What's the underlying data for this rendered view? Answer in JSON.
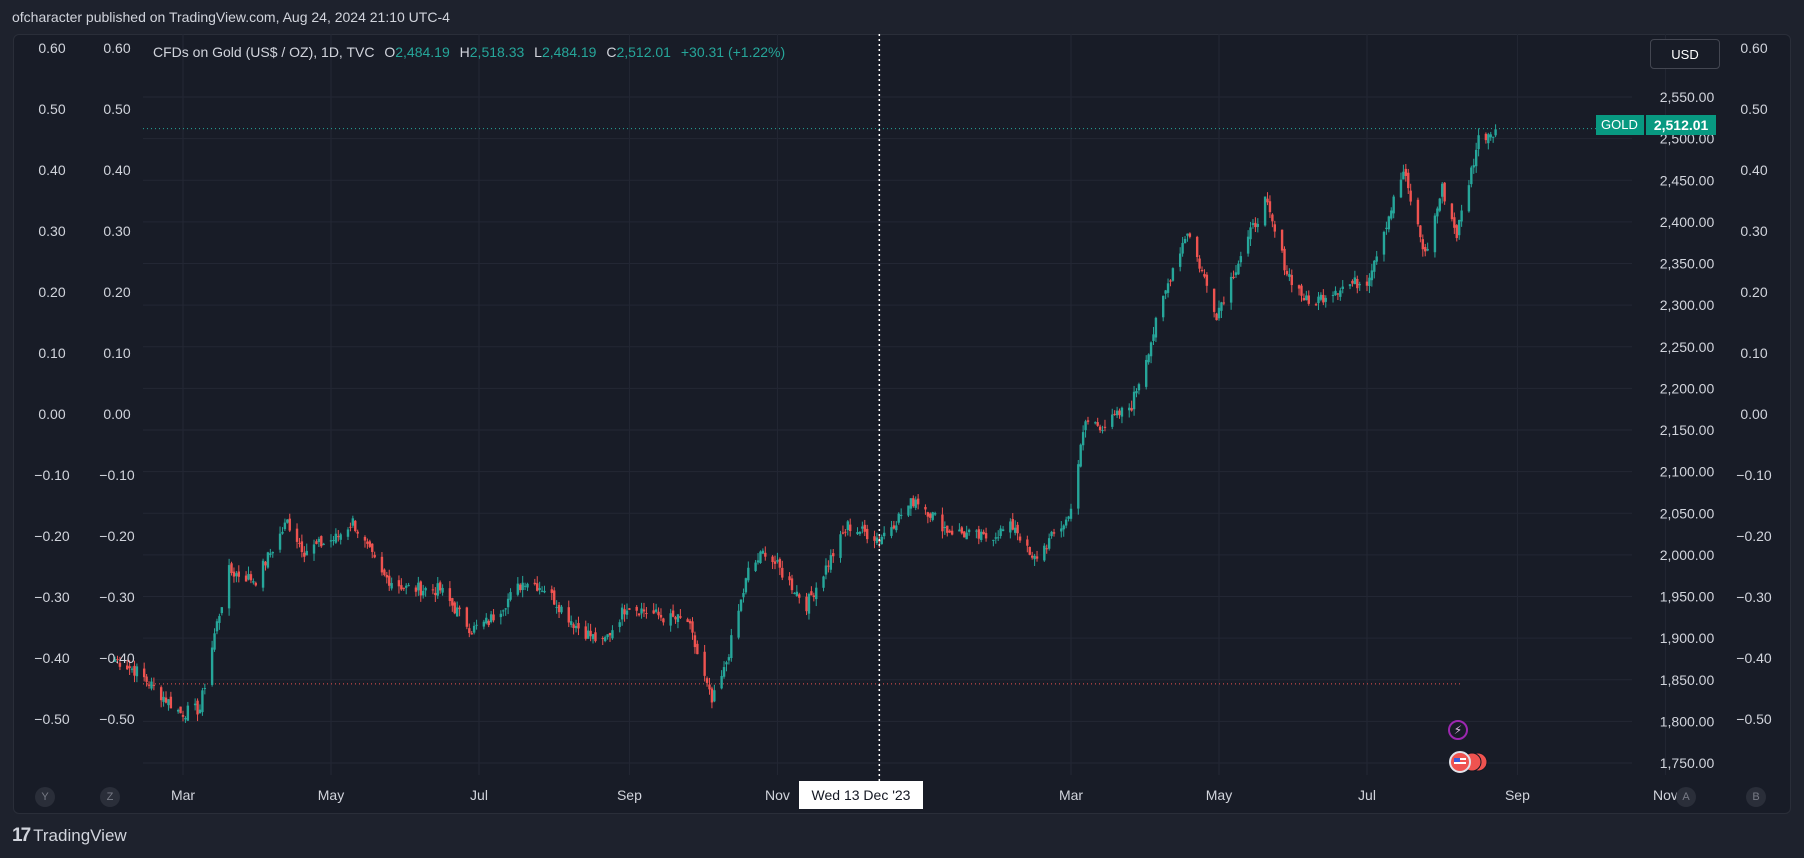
{
  "header": {
    "published": "ofcharacter published on TradingView.com, Aug 24, 2024 21:10 UTC-4"
  },
  "legend": {
    "symbol": "CFDs on Gold (US$ / OZ), 1D, TVC",
    "o_label": "O",
    "o": "2,484.19",
    "h_label": "H",
    "h": "2,518.33",
    "l_label": "L",
    "l": "2,484.19",
    "c_label": "C",
    "c": "2,512.01",
    "change": "+30.31 (+1.22%)"
  },
  "currency_button": "USD",
  "price_badge": {
    "symbol": "GOLD",
    "price": "2,512.01"
  },
  "crosshair_date": "Wed 13 Dec '23",
  "bottom_buttons": {
    "y": "Y",
    "z": "Z",
    "a": "A",
    "b": "B"
  },
  "footer": {
    "brand": "TradingView",
    "logo_mark": "17"
  },
  "event_icon": "lightning-icon",
  "flag_icon": "us-flag-icon",
  "colors": {
    "background": "#181c27",
    "up": "#26a69a",
    "down": "#ef5350",
    "text": "#d1d4dc",
    "badge": "#089981",
    "grid": "#232734"
  },
  "chart_data": {
    "type": "candlestick",
    "symbol": "GOLD",
    "timeframe": "1D",
    "ylim": [
      1725,
      2600
    ],
    "y_ticks": [
      "2,550.00",
      "2,500.00",
      "2,450.00",
      "2,400.00",
      "2,350.00",
      "2,300.00",
      "2,250.00",
      "2,200.00",
      "2,150.00",
      "2,100.00",
      "2,050.00",
      "2,000.00",
      "1,950.00",
      "1,900.00",
      "1,850.00",
      "1,800.00",
      "1,750.00"
    ],
    "y_tick_values": [
      2550,
      2500,
      2450,
      2400,
      2350,
      2300,
      2250,
      2200,
      2150,
      2100,
      2050,
      2000,
      1950,
      1900,
      1850,
      1800,
      1750
    ],
    "secondary_ticks": [
      "0.60",
      "0.50",
      "0.40",
      "0.30",
      "0.20",
      "0.10",
      "0.00",
      "−0.10",
      "−0.20",
      "−0.30",
      "−0.40",
      "−0.50"
    ],
    "secondary_tick_values": [
      0.6,
      0.5,
      0.4,
      0.3,
      0.2,
      0.1,
      0,
      -0.1,
      -0.2,
      -0.3,
      -0.4,
      -0.5
    ],
    "secondary_lim": [
      -0.6,
      0.62
    ],
    "x_ticks": [
      "Mar",
      "May",
      "Jul",
      "Sep",
      "Nov",
      "Mar",
      "May",
      "Jul",
      "Sep",
      "Nov"
    ],
    "x_tick_dates": [
      "2023-03-01",
      "2023-05-01",
      "2023-07-01",
      "2023-09-01",
      "2023-11-01",
      "2024-03-01",
      "2024-05-01",
      "2024-07-01",
      "2024-09-01",
      "2024-11-01"
    ],
    "crosshair_x": "2023-12-13",
    "last_price": 2512.01,
    "low_line": 1845,
    "anchors": [
      [
        "2023-02-01",
        1875
      ],
      [
        "2023-02-10",
        1860
      ],
      [
        "2023-02-28",
        1810
      ],
      [
        "2023-03-08",
        1815
      ],
      [
        "2023-03-14",
        1905
      ],
      [
        "2023-03-20",
        1980
      ],
      [
        "2023-03-31",
        1970
      ],
      [
        "2023-04-13",
        2040
      ],
      [
        "2023-04-20",
        2005
      ],
      [
        "2023-05-03",
        2020
      ],
      [
        "2023-05-10",
        2040
      ],
      [
        "2023-05-22",
        1975
      ],
      [
        "2023-06-01",
        1960
      ],
      [
        "2023-06-15",
        1958
      ],
      [
        "2023-06-28",
        1910
      ],
      [
        "2023-07-05",
        1920
      ],
      [
        "2023-07-20",
        1970
      ],
      [
        "2023-07-28",
        1960
      ],
      [
        "2023-08-10",
        1915
      ],
      [
        "2023-08-21",
        1893
      ],
      [
        "2023-08-31",
        1940
      ],
      [
        "2023-09-15",
        1925
      ],
      [
        "2023-09-25",
        1920
      ],
      [
        "2023-10-05",
        1822
      ],
      [
        "2023-10-10",
        1860
      ],
      [
        "2023-10-20",
        1980
      ],
      [
        "2023-10-27",
        2005
      ],
      [
        "2023-11-13",
        1940
      ],
      [
        "2023-11-30",
        2035
      ],
      [
        "2023-12-04",
        2030
      ],
      [
        "2023-12-13",
        2020
      ],
      [
        "2023-12-28",
        2068
      ],
      [
        "2024-01-10",
        2030
      ],
      [
        "2024-01-25",
        2020
      ],
      [
        "2024-02-07",
        2035
      ],
      [
        "2024-02-14",
        1992
      ],
      [
        "2024-02-29",
        2045
      ],
      [
        "2024-03-07",
        2160
      ],
      [
        "2024-03-15",
        2155
      ],
      [
        "2024-03-26",
        2180
      ],
      [
        "2024-04-12",
        2345
      ],
      [
        "2024-04-18",
        2390
      ],
      [
        "2024-04-30",
        2290
      ],
      [
        "2024-05-10",
        2360
      ],
      [
        "2024-05-20",
        2425
      ],
      [
        "2024-05-29",
        2340
      ],
      [
        "2024-06-07",
        2300
      ],
      [
        "2024-06-18",
        2320
      ],
      [
        "2024-07-01",
        2330
      ],
      [
        "2024-07-16",
        2460
      ],
      [
        "2024-07-25",
        2360
      ],
      [
        "2024-08-01",
        2440
      ],
      [
        "2024-08-07",
        2385
      ],
      [
        "2024-08-16",
        2500
      ],
      [
        "2024-08-23",
        2512
      ]
    ]
  }
}
